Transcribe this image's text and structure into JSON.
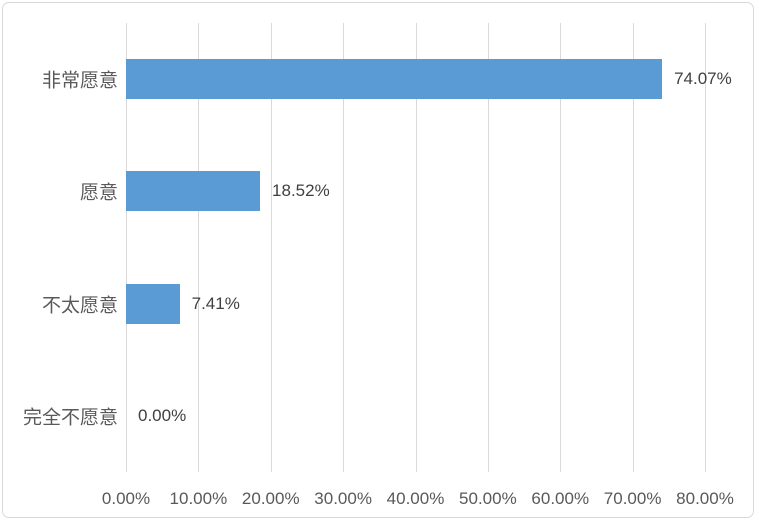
{
  "chart_data": {
    "type": "bar",
    "orientation": "horizontal",
    "title": "",
    "xlabel": "",
    "ylabel": "",
    "categories": [
      "非常愿意",
      "愿意",
      "不太愿意",
      "完全不愿意"
    ],
    "values": [
      74.07,
      18.52,
      7.41,
      0
    ],
    "data_labels": [
      "74.07%",
      "18.52%",
      "7.41%",
      "0.00%"
    ],
    "x_ticks": [
      "0.00%",
      "10.00%",
      "20.00%",
      "30.00%",
      "40.00%",
      "50.00%",
      "60.00%",
      "70.00%",
      "80.00%"
    ],
    "xlim": [
      0,
      80
    ],
    "tick_step": 10,
    "grid": "vertical-only",
    "legend": "none",
    "colors": {
      "bar": "#5B9BD5",
      "gridline": "#D9D9D9",
      "frame_border": "#D9D9D9",
      "axis_text": "#595959",
      "data_label_text": "#404040",
      "background": "#FFFFFF"
    }
  }
}
